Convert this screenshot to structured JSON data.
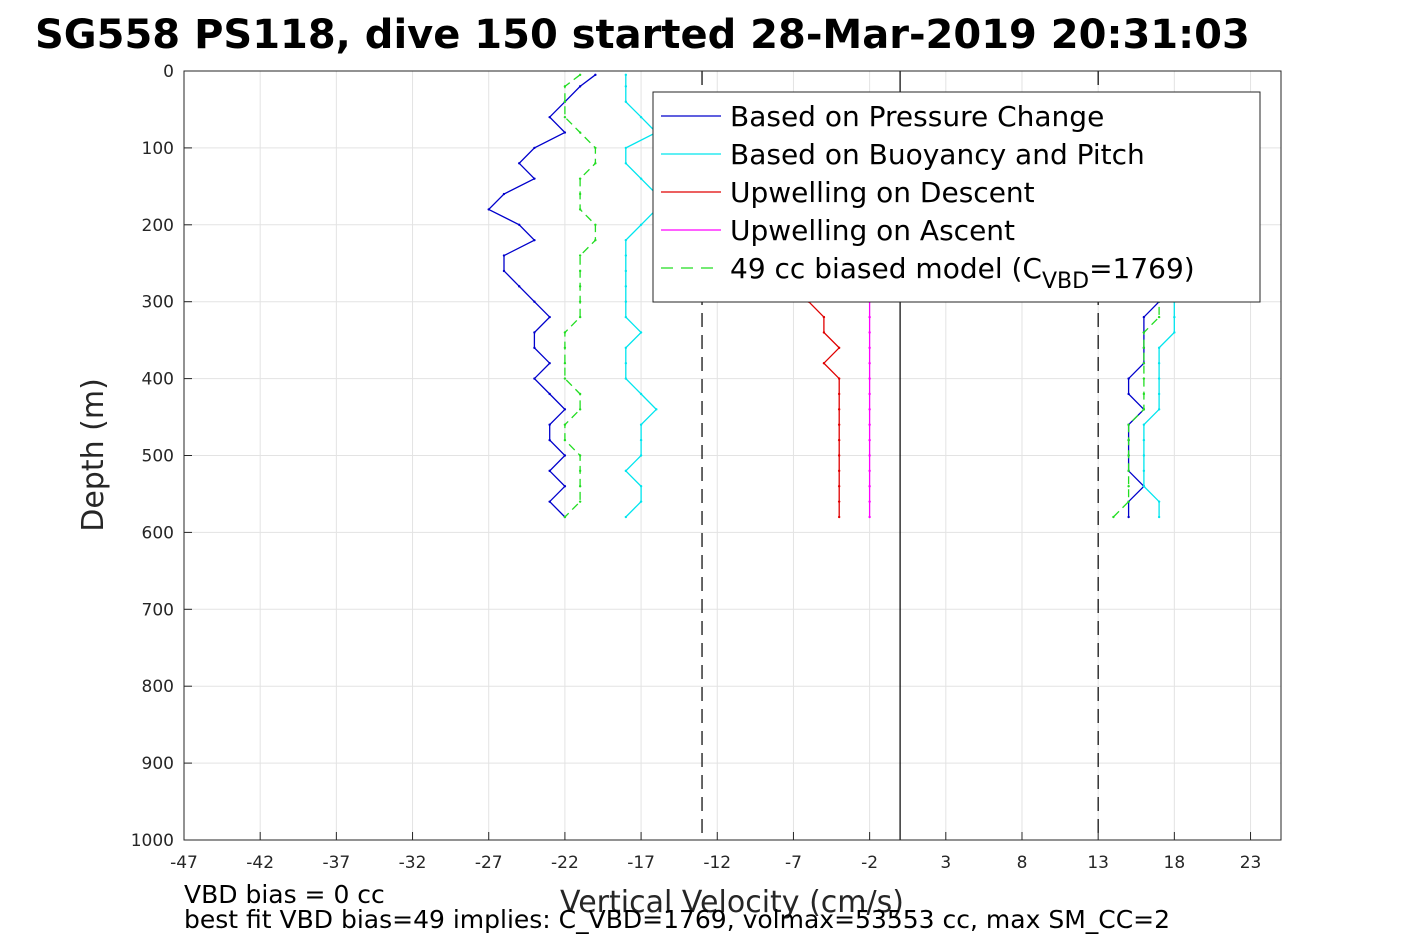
{
  "chart_data": {
    "type": "line",
    "title": "SG558 PS118, dive 150 started 28-Mar-2019 20:31:03",
    "xlabel": "Vertical Velocity (cm/s)",
    "ylabel": "Depth (m)",
    "xlim": [
      -47,
      25
    ],
    "ylim": [
      0,
      1000
    ],
    "y_reversed": true,
    "grid": true,
    "x_ticks": [
      -47,
      -42,
      -37,
      -32,
      -27,
      -22,
      -17,
      -12,
      -7,
      -2,
      3,
      8,
      13,
      18,
      23
    ],
    "y_ticks": [
      0,
      100,
      200,
      300,
      400,
      500,
      600,
      700,
      800,
      900,
      1000
    ],
    "legend_position": "top-right",
    "legend": [
      {
        "label": "Based on Pressure Change",
        "color": "#0000cc",
        "style": "solid"
      },
      {
        "label": "Based on Buoyancy and Pitch",
        "color": "#00e5ee",
        "style": "solid"
      },
      {
        "label": "Upwelling on Descent",
        "color": "#e00000",
        "style": "solid"
      },
      {
        "label": "Upwelling on Ascent",
        "color": "#ff00ff",
        "style": "solid"
      },
      {
        "label_main": "49 cc biased model (C",
        "label_sub": "VBD",
        "label_end": "=1769)",
        "color": "#22dd22",
        "style": "dashed"
      }
    ],
    "reference_lines": [
      {
        "x": -13,
        "style": "dashed",
        "color": "#000000"
      },
      {
        "x": 0,
        "style": "solid",
        "color": "#000000"
      },
      {
        "x": 13,
        "style": "dashed",
        "color": "#000000"
      }
    ],
    "series": [
      {
        "name": "Based on Pressure Change",
        "color": "#0000cc",
        "descent": {
          "depth": [
            5,
            20,
            40,
            60,
            80,
            100,
            120,
            140,
            160,
            180,
            200,
            220,
            240,
            260,
            280,
            300,
            320,
            340,
            360,
            380,
            400,
            420,
            440,
            460,
            480,
            500,
            520,
            540,
            560,
            580
          ],
          "velocity": [
            -20,
            -21,
            -22,
            -23,
            -22,
            -24,
            -25,
            -24,
            -26,
            -27,
            -25,
            -24,
            -26,
            -26,
            -25,
            -24,
            -23,
            -24,
            -24,
            -23,
            -24,
            -23,
            -22,
            -23,
            -23,
            -22,
            -23,
            -22,
            -23,
            -22
          ]
        },
        "ascent": {
          "depth": [
            580,
            560,
            540,
            520,
            500,
            480,
            460,
            440,
            420,
            400,
            380,
            360,
            340,
            320,
            300
          ],
          "velocity": [
            15,
            15,
            16,
            15,
            15,
            15,
            15,
            16,
            15,
            15,
            16,
            16,
            16,
            16,
            17
          ]
        }
      },
      {
        "name": "Based on Buoyancy and Pitch",
        "color": "#00e5ee",
        "descent": {
          "depth": [
            5,
            20,
            40,
            60,
            80,
            100,
            120,
            140,
            160,
            180,
            200,
            220,
            240,
            260,
            280,
            300,
            320,
            340,
            360,
            380,
            400,
            420,
            440,
            460,
            480,
            500,
            520,
            540,
            560,
            580
          ],
          "velocity": [
            -18,
            -18,
            -18,
            -17,
            -16,
            -18,
            -18,
            -17,
            -16,
            -16,
            -17,
            -18,
            -18,
            -18,
            -18,
            -18,
            -18,
            -17,
            -18,
            -18,
            -18,
            -17,
            -16,
            -17,
            -17,
            -17,
            -18,
            -17,
            -17,
            -18
          ]
        },
        "ascent": {
          "depth": [
            580,
            560,
            540,
            520,
            500,
            480,
            460,
            440,
            420,
            400,
            380,
            360,
            340,
            320,
            300
          ],
          "velocity": [
            17,
            17,
            16,
            16,
            16,
            16,
            16,
            17,
            17,
            17,
            17,
            17,
            18,
            18,
            18
          ]
        }
      },
      {
        "name": "Upwelling on Descent",
        "color": "#e00000",
        "descent": {
          "depth": [
            300,
            320,
            340,
            360,
            380,
            400,
            420,
            440,
            460,
            480,
            500,
            520,
            540,
            560,
            580
          ],
          "velocity": [
            -6,
            -5,
            -5,
            -4,
            -5,
            -4,
            -4,
            -4,
            -4,
            -4,
            -4,
            -4,
            -4,
            -4,
            -4
          ]
        }
      },
      {
        "name": "Upwelling on Ascent",
        "color": "#ff00ff",
        "ascent": {
          "depth": [
            580,
            560,
            540,
            520,
            500,
            480,
            460,
            440,
            420,
            400,
            380,
            360,
            340,
            320,
            300
          ],
          "velocity": [
            -2,
            -2,
            -2,
            -2,
            -2,
            -2,
            -2,
            -2,
            -2,
            -2,
            -2,
            -2,
            -2,
            -2,
            -2
          ]
        }
      },
      {
        "name": "49 cc biased model (CVBD=1769)",
        "color": "#22dd22",
        "style": "dashed",
        "descent": {
          "depth": [
            5,
            20,
            40,
            60,
            80,
            100,
            120,
            140,
            160,
            180,
            200,
            220,
            240,
            260,
            280,
            300,
            320,
            340,
            360,
            380,
            400,
            420,
            440,
            460,
            480,
            500,
            520,
            540,
            560,
            580
          ],
          "velocity": [
            -21,
            -22,
            -22,
            -22,
            -21,
            -20,
            -20,
            -21,
            -21,
            -21,
            -20,
            -20,
            -21,
            -21,
            -21,
            -21,
            -21,
            -22,
            -22,
            -22,
            -22,
            -21,
            -21,
            -22,
            -22,
            -21,
            -21,
            -21,
            -21,
            -22
          ]
        },
        "ascent": {
          "depth": [
            580,
            560,
            540,
            520,
            500,
            480,
            460,
            440,
            420,
            400,
            380,
            360,
            340,
            320,
            300
          ],
          "velocity": [
            14,
            15,
            15,
            15,
            15,
            15,
            15,
            16,
            16,
            16,
            16,
            16,
            16,
            17,
            17
          ]
        }
      }
    ]
  },
  "footer": {
    "line1": "VBD bias = 0 cc",
    "line2": "best fit VBD bias=49 implies: C_VBD=1769, volmax=53553 cc, max SM_CC=2"
  }
}
